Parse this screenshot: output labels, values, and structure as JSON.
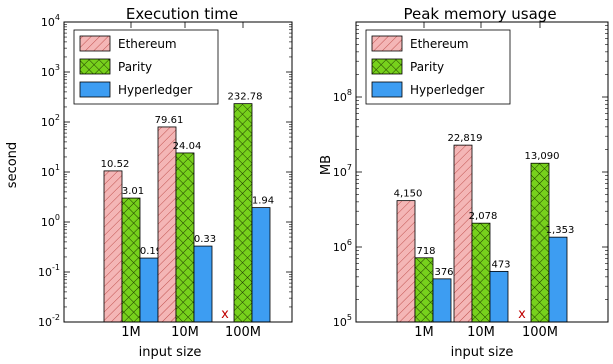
{
  "colors": {
    "ethereum": "#f4b6b6",
    "parity": "#77d11c",
    "hyperledger": "#3d9df2",
    "missing_marker": "#c00000"
  },
  "chart_data": [
    {
      "type": "bar",
      "title": "Execution time",
      "xlabel": "input size",
      "ylabel": "second",
      "yscale": "log",
      "ylim": [
        0.01,
        10000
      ],
      "ytick_exponents": [
        -2,
        -1,
        0,
        1,
        2,
        3,
        4
      ],
      "legend": "top-left",
      "categories": [
        "1M",
        "10M",
        "100M"
      ],
      "series": [
        {
          "name": "Ethereum",
          "values": [
            10.52,
            79.61,
            null
          ],
          "labels": [
            "10.52",
            "79.61",
            "x"
          ]
        },
        {
          "name": "Parity",
          "values": [
            3.01,
            24.04,
            232.78
          ],
          "labels": [
            "3.01",
            "24.04",
            "232.78"
          ]
        },
        {
          "name": "Hyperledger",
          "values": [
            0.19,
            0.33,
            1.94
          ],
          "labels": [
            "0.19",
            "0.33",
            "1.94"
          ]
        }
      ]
    },
    {
      "type": "bar",
      "title": "Peak memory usage",
      "xlabel": "input size",
      "ylabel": "MB",
      "yscale": "log",
      "ylim": [
        100000,
        1000000000
      ],
      "ytick_exponents": [
        5,
        6,
        7,
        8
      ],
      "legend": "top-left",
      "categories": [
        "1M",
        "10M",
        "100M"
      ],
      "series": [
        {
          "name": "Ethereum",
          "values": [
            4150000,
            22819000,
            null
          ],
          "labels": [
            "4,150",
            "22,819",
            "x"
          ]
        },
        {
          "name": "Parity",
          "values": [
            718000,
            2078000,
            13090000
          ],
          "labels": [
            "718",
            "2,078",
            "13,090"
          ]
        },
        {
          "name": "Hyperledger",
          "values": [
            376000,
            473000,
            1353000
          ],
          "labels": [
            "376",
            "473",
            "1,353"
          ]
        }
      ]
    }
  ]
}
